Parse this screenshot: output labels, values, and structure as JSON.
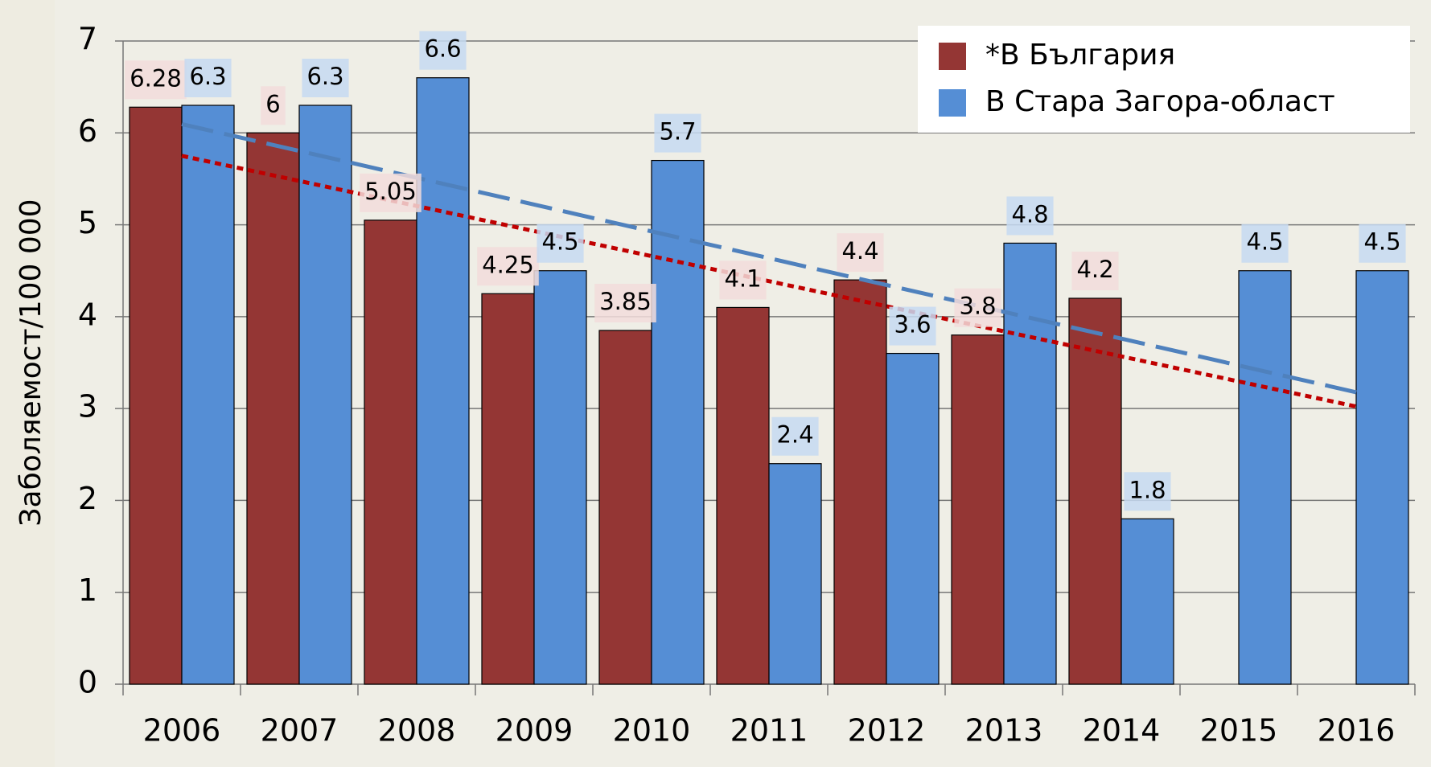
{
  "chart_data": {
    "type": "bar",
    "y_label": "Заболяемост/100 000",
    "categories": [
      "2006",
      "2007",
      "2008",
      "2009",
      "2010",
      "2011",
      "2012",
      "2013",
      "2014",
      "2015",
      "2016"
    ],
    "series": [
      {
        "name": "*В България",
        "color": "#943634",
        "label_bg": "#f2dcdb",
        "trend_color": "#c00000",
        "trend_dash": "8 6",
        "values": [
          6.28,
          6,
          5.05,
          4.25,
          3.85,
          4.1,
          4.4,
          3.8,
          4.2,
          null,
          null
        ]
      },
      {
        "name": "В Стара Загора-област",
        "color": "#558ed5",
        "label_bg": "#c6d9f1",
        "trend_color": "#4f81bd",
        "trend_dash": "40 14",
        "values": [
          6.3,
          6.3,
          6.6,
          4.5,
          5.7,
          2.4,
          3.6,
          4.8,
          1.8,
          4.5,
          4.5
        ]
      }
    ],
    "trendline": true,
    "ylim": [
      0,
      7
    ],
    "yticks": [
      0,
      1,
      2,
      3,
      4,
      5,
      6,
      7
    ],
    "grid": true,
    "legend": "top-right"
  }
}
